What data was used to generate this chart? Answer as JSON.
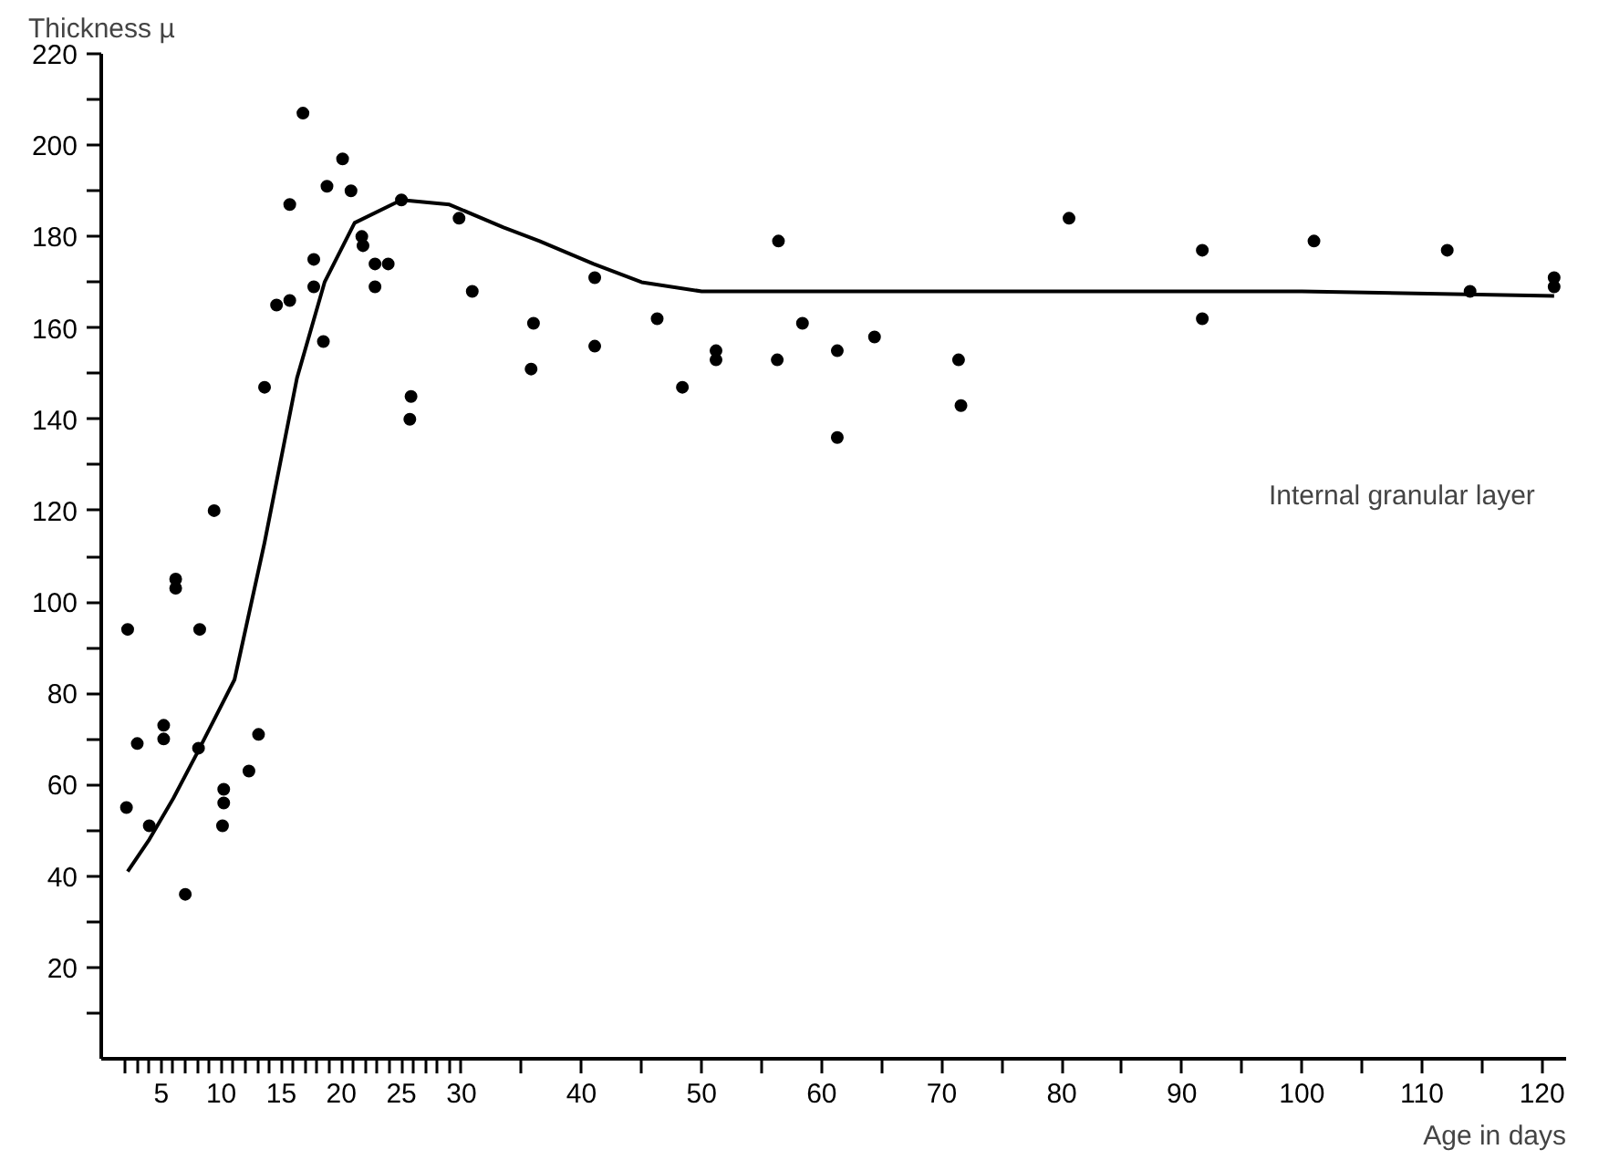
{
  "chart_data": {
    "type": "scatter",
    "ylabel": "Thickness µ",
    "xlabel": "Age in days",
    "annotations": [
      "Internal granular layer"
    ],
    "xlim": [
      0,
      122
    ],
    "ylim": [
      0,
      220
    ],
    "xticks": [
      {
        "value": 2,
        "label": null
      },
      {
        "value": 3,
        "label": null
      },
      {
        "value": 4,
        "label": null
      },
      5,
      {
        "value": 6,
        "label": null
      },
      {
        "value": 7,
        "label": null
      },
      {
        "value": 8,
        "label": null
      },
      {
        "value": 9,
        "label": null
      },
      10,
      {
        "value": 11,
        "label": null
      },
      {
        "value": 12,
        "label": null
      },
      {
        "value": 13,
        "label": null
      },
      {
        "value": 14,
        "label": null
      },
      15,
      {
        "value": 16,
        "label": null
      },
      {
        "value": 17,
        "label": null
      },
      {
        "value": 18,
        "label": null
      },
      {
        "value": 19,
        "label": null
      },
      20,
      {
        "value": 21,
        "label": null
      },
      {
        "value": 22,
        "label": null
      },
      {
        "value": 23,
        "label": null
      },
      {
        "value": 24,
        "label": null
      },
      25,
      {
        "value": 26,
        "label": null
      },
      {
        "value": 27,
        "label": null
      },
      {
        "value": 28,
        "label": null
      },
      {
        "value": 29,
        "label": null
      },
      30,
      {
        "value": 35,
        "label": null
      },
      40,
      {
        "value": 45,
        "label": null
      },
      50,
      {
        "value": 55,
        "label": null
      },
      60,
      {
        "value": 65,
        "label": null
      },
      70,
      {
        "value": 75,
        "label": null
      },
      80,
      {
        "value": 85,
        "label": null
      },
      90,
      {
        "value": 95,
        "label": null
      },
      100,
      {
        "value": 105,
        "label": null
      },
      110,
      {
        "value": 115,
        "label": null
      },
      120
    ],
    "yticks": [
      {
        "value": 10,
        "label": null
      },
      20,
      {
        "value": 30,
        "label": null
      },
      40,
      {
        "value": 50,
        "label": null
      },
      60,
      {
        "value": 70,
        "label": null
      },
      80,
      {
        "value": 90,
        "label": null
      },
      100,
      {
        "value": 110,
        "label": null
      },
      120,
      {
        "value": 130,
        "label": null
      },
      140,
      {
        "value": 150,
        "label": null
      },
      160,
      {
        "value": 170,
        "label": null
      },
      180,
      {
        "value": 190,
        "label": null
      },
      200,
      {
        "value": 210,
        "label": null
      },
      220
    ],
    "grid": false,
    "marker": "circle",
    "series": [
      {
        "color": "#000000",
        "x": [
          16.8,
          20.1,
          18.8,
          20.8,
          15.7,
          25.0,
          29.8,
          21.7,
          21.8,
          17.7,
          22.8,
          23.9,
          17.7,
          22.8,
          14.6,
          15.7,
          30.9,
          18.5,
          36.0,
          35.8,
          13.6,
          25.8,
          25.7,
          9.4,
          2.2,
          6.2,
          6.2,
          8.2,
          3.0,
          5.2,
          5.2,
          8.1,
          13.1,
          12.3,
          10.2,
          10.2,
          10.1,
          2.1,
          4.0,
          7.0,
          41.1,
          41.1,
          46.3,
          48.4,
          51.2,
          51.2,
          56.4,
          56.3,
          58.4,
          61.3,
          61.3,
          64.4,
          71.4,
          71.6,
          80.6,
          91.7,
          91.7,
          101.0,
          112.1,
          114.0,
          121.0,
          121.0
        ],
        "values": [
          207,
          197,
          191,
          190,
          187,
          188,
          184,
          180,
          178,
          175,
          174,
          174,
          169,
          169,
          165,
          166,
          168,
          157,
          161,
          151,
          147,
          145,
          140,
          120,
          94,
          105,
          103,
          94,
          69,
          73,
          70,
          68,
          71,
          63,
          59,
          56,
          51,
          55,
          51,
          36,
          171,
          156,
          162,
          147,
          155,
          153,
          179,
          153,
          161,
          155,
          136,
          158,
          153,
          143,
          184,
          177,
          162,
          179,
          177,
          168,
          171,
          169
        ]
      },
      {
        "type": "line",
        "color": "#000000",
        "marker": "none",
        "x": [
          2.2,
          4,
          6,
          8,
          11.1,
          13.6,
          16.3,
          18.6,
          21.1,
          25,
          29,
          33.5,
          36.5,
          41,
          45,
          50,
          60,
          80,
          100,
          121
        ],
        "values": [
          41,
          48,
          57,
          67,
          83,
          113,
          149,
          170,
          183,
          188,
          187,
          182,
          179,
          174,
          170,
          168,
          168,
          168,
          168,
          167
        ]
      }
    ]
  }
}
